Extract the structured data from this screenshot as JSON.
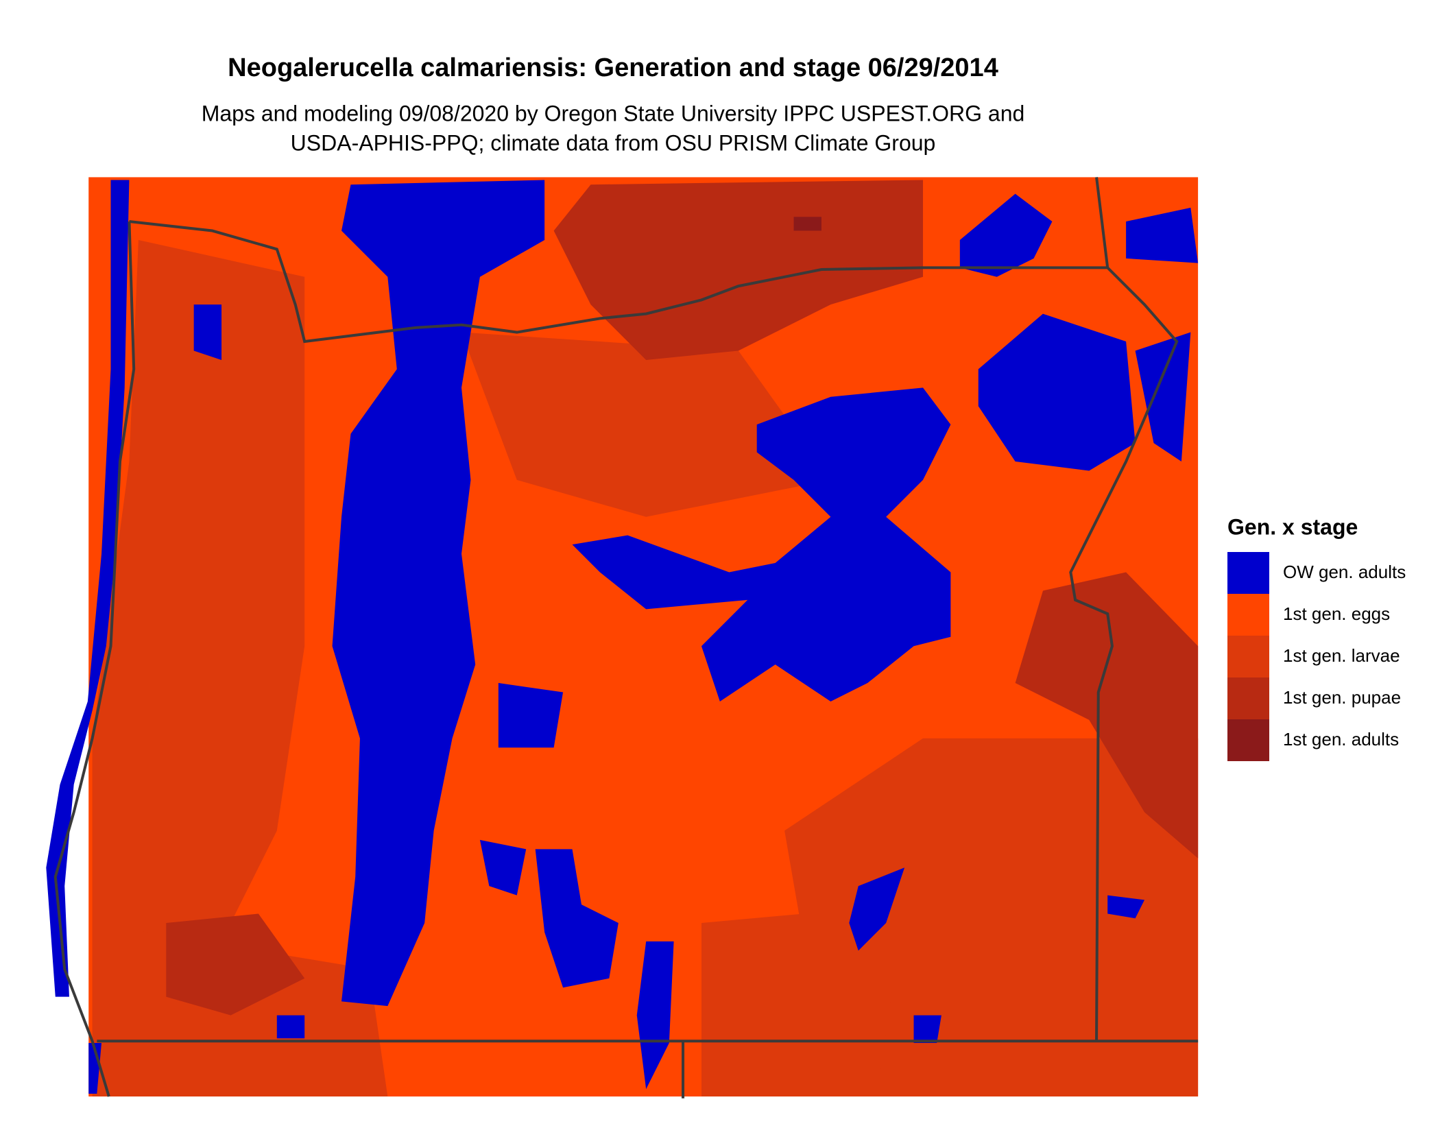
{
  "header": {
    "title": "Neogalerucella calmariensis: Generation and stage 06/29/2014",
    "subtitle_lines": [
      "Maps and modeling 09/08/2020 by Oregon State University IPPC USPEST.ORG and",
      "USDA-APHIS-PPQ; climate data from OSU PRISM Climate Group"
    ]
  },
  "legend": {
    "title": "Gen. x stage",
    "items": [
      {
        "label": "OW gen. adults",
        "color": "#0000cd"
      },
      {
        "label": "1st gen. eggs",
        "color": "#ff4500"
      },
      {
        "label": "1st gen. larvae",
        "color": "#dd3a0c"
      },
      {
        "label": "1st gen. pupae",
        "color": "#b82a12"
      },
      {
        "label": "1st gen. adults",
        "color": "#8b1a1a"
      }
    ]
  }
}
